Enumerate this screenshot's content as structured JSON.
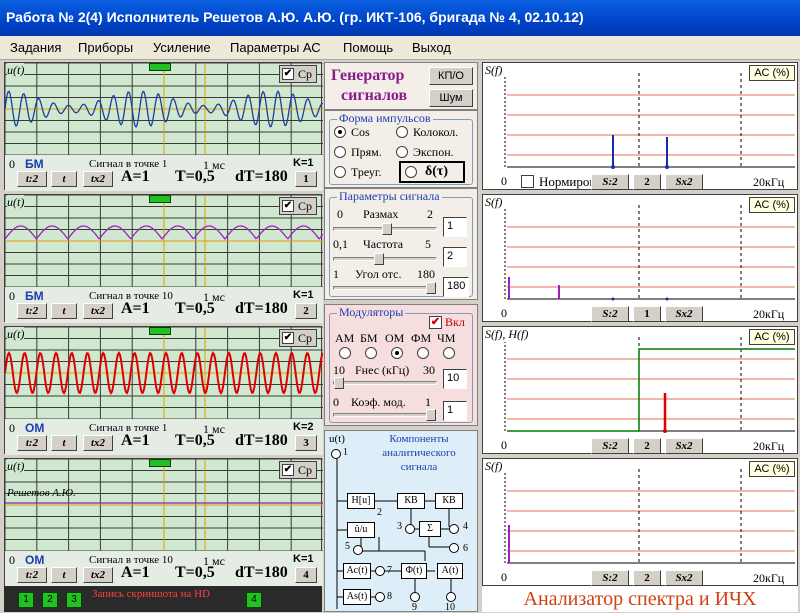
{
  "window": {
    "title": "Работа № 2(4)  Исполнитель Решетов А.Ю.  А.Ю. (гр. ИКТ-106, бригада № 4, 02.10.12)"
  },
  "menu": [
    "Задания",
    "Приборы",
    "Усиление",
    "Параметры АС",
    "Помощь",
    "Выход"
  ],
  "scopes": [
    {
      "ylabel": "u(t)",
      "cp": "Ср",
      "mod": "БМ",
      "point": "Сигнал в точке 1",
      "ms": "1 мс",
      "k": "K=1",
      "b1": "t:2",
      "b2": "t",
      "b3": "tx2",
      "a": "A=1",
      "t": "T=0,5",
      "dt": "dT=180",
      "num": "1"
    },
    {
      "ylabel": "u(t)",
      "cp": "Ср",
      "mod": "БМ",
      "point": "Сигнал в точке 10",
      "ms": "1 мс",
      "k": "K=1",
      "b1": "t:2",
      "b2": "t",
      "b3": "tx2",
      "a": "A=1",
      "t": "T=0,5",
      "dt": "dT=180",
      "num": "2"
    },
    {
      "ylabel": "u(t)",
      "cp": "Ср",
      "mod": "ОМ",
      "point": "Сигнал в точке 1",
      "ms": "1 мс",
      "k": "K=2",
      "b1": "t:2",
      "b2": "t",
      "b3": "tx2",
      "a": "A=1",
      "t": "T=0,5",
      "dt": "dT=180",
      "num": "3"
    },
    {
      "ylabel": "u(t)",
      "cp": "Ср",
      "mod": "ОМ",
      "point": "Сигнал в точке 10",
      "ms": "1 мс",
      "k": "K=1",
      "b1": "t:2",
      "b2": "t",
      "b3": "tx2",
      "a": "A=1",
      "t": "T=0,5",
      "dt": "dT=180",
      "num": "4",
      "name": "Решетов А.Ю."
    }
  ],
  "bottom": {
    "b1": "1",
    "b2": "2",
    "b3": "3",
    "b4": "4",
    "rec": "Запись скриншота на HD"
  },
  "generator": {
    "title1": "Генератор",
    "title2": "сигналов",
    "kpo": "КП/О",
    "noise": "Шум",
    "shape_caption": "Форма  импульсов",
    "shapes": [
      "Cos",
      "Колокол.",
      "Прям.",
      "Экспон.",
      "Треуг."
    ],
    "delta": "δ(τ)",
    "params_caption": "Параметры сигнала",
    "range_min": "0",
    "range_label": "Размах",
    "range_max": "2",
    "range_val": "1",
    "freq_min": "0,1",
    "freq_label": "Частота",
    "freq_max": "5",
    "freq_val": "2",
    "angle_min": "1",
    "angle_label": "Угол отс.",
    "angle_max": "180",
    "angle_val": "180"
  },
  "modulators": {
    "caption": "Модуляторы",
    "enable": "Вкл",
    "types": [
      "АМ",
      "БМ",
      "ОМ",
      "ФМ",
      "ЧМ"
    ],
    "fnes_min": "10",
    "fnes_label": "Fнес (кГц)",
    "fnes_max": "30",
    "fnes_val": "10",
    "k_min": "0",
    "k_label": "Коэф. мод.",
    "k_max": "1",
    "k_val": "1"
  },
  "analytic": {
    "caption1": "Компоненты",
    "caption2": "аналитического",
    "caption3": "сигнала",
    "ut": "u(t)",
    "blocks": [
      "H[u]",
      "КВ",
      "КВ",
      "û/u",
      "Σ",
      "Ac(t)",
      "Φ(t)",
      "A(t)",
      "As(t)"
    ],
    "nodes": [
      "1",
      "2",
      "3",
      "4",
      "5",
      "6",
      "7",
      "8",
      "9",
      "10"
    ]
  },
  "spectra": [
    {
      "ylabel": "S(f)",
      "ac": "АС (%)",
      "x0": "0",
      "unit": "20кГц",
      "norm": "Нормировка",
      "s2": "S:2",
      "mid": "2",
      "sx2": "Sx2"
    },
    {
      "ylabel": "S(f)",
      "ac": "АС (%)",
      "x0": "0",
      "unit": "20кГц",
      "s2": "S:2",
      "mid": "1",
      "sx2": "Sx2"
    },
    {
      "ylabel": "S(f), H(f)",
      "ac": "АС (%)",
      "x0": "0",
      "unit": "20кГц",
      "s2": "S:2",
      "mid": "2",
      "sx2": "Sx2"
    },
    {
      "ylabel": "S(f)",
      "ac": "АС (%)",
      "x0": "0",
      "unit": "20кГц",
      "s2": "S:2",
      "mid": "2",
      "sx2": "Sx2"
    }
  ],
  "footer": {
    "analyzer": "Анализатор спектра и ИЧХ"
  },
  "colors": {
    "scope_bg": "#cfe8cf",
    "trace1": "#1f3fa0",
    "trace2": "#a020c0",
    "trace3": "#e00000",
    "trace4": "#8020c0",
    "title_bar": "#0044c8"
  }
}
